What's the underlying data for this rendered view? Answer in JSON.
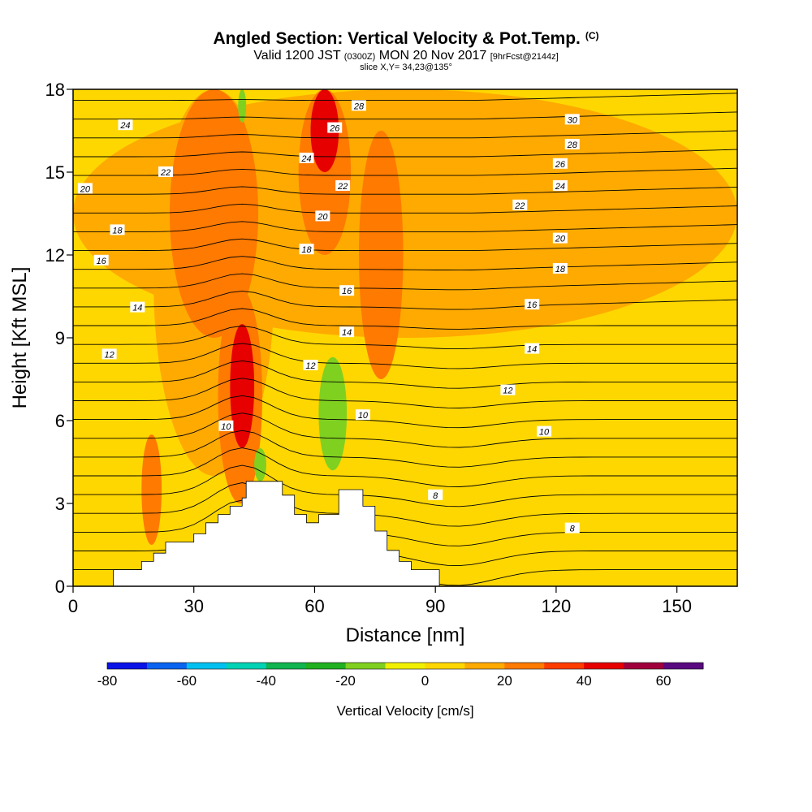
{
  "header": {
    "title": "Angled Section: Vertical Velocity & Pot.Temp.",
    "title_unit": "(C)",
    "subtitle_a": "Valid 1200 JST",
    "subtitle_b": "(0300Z)",
    "subtitle_c": "MON 20 Nov 2017",
    "subtitle_d": "[9hrFcst@2144z]",
    "slice": "slice X,Y= 34,23@135°"
  },
  "chart_data": {
    "type": "heatmap",
    "title": "Angled Section: Vertical Velocity & Pot.Temp.",
    "xlabel": "Distance [nm]",
    "ylabel": "Height [Kft MSL]",
    "xlim": [
      0,
      165
    ],
    "ylim": [
      0,
      18
    ],
    "x_ticks": [
      0,
      30,
      60,
      90,
      120,
      150
    ],
    "y_ticks": [
      0,
      3,
      6,
      9,
      12,
      15,
      18
    ],
    "colorbar": {
      "label": "Vertical Velocity [cm/s]",
      "tick_values": [
        -80,
        -60,
        -40,
        -20,
        0,
        20,
        40,
        60
      ],
      "bounds": [
        -80,
        70
      ],
      "colors": [
        "#0a14e6",
        "#0a64f0",
        "#00c0f0",
        "#00d2b4",
        "#10b450",
        "#20b020",
        "#80d020",
        "#f0f000",
        "#ffd700",
        "#ffaa00",
        "#ff7a00",
        "#ff3c00",
        "#e60000",
        "#a0003c",
        "#5a0a80"
      ]
    },
    "terrain": [
      [
        0,
        0
      ],
      [
        10,
        0
      ],
      [
        10,
        0.6
      ],
      [
        17,
        0.6
      ],
      [
        17,
        0.9
      ],
      [
        20,
        0.9
      ],
      [
        20,
        1.2
      ],
      [
        23,
        1.2
      ],
      [
        23,
        1.6
      ],
      [
        30,
        1.6
      ],
      [
        30,
        1.9
      ],
      [
        33,
        1.9
      ],
      [
        33,
        2.3
      ],
      [
        36,
        2.3
      ],
      [
        36,
        2.6
      ],
      [
        39,
        2.6
      ],
      [
        39,
        2.9
      ],
      [
        42,
        2.9
      ],
      [
        42,
        3.2
      ],
      [
        43,
        3.2
      ],
      [
        43,
        3.8
      ],
      [
        52,
        3.8
      ],
      [
        52,
        3.3
      ],
      [
        55,
        3.3
      ],
      [
        55,
        2.6
      ],
      [
        58,
        2.6
      ],
      [
        58,
        2.3
      ],
      [
        61,
        2.3
      ],
      [
        61,
        2.6
      ],
      [
        66,
        2.6
      ],
      [
        66,
        3.5
      ],
      [
        72,
        3.5
      ],
      [
        72,
        2.9
      ],
      [
        75,
        2.9
      ],
      [
        75,
        2.0
      ],
      [
        78,
        2.0
      ],
      [
        78,
        1.3
      ],
      [
        81,
        1.3
      ],
      [
        81,
        0.9
      ],
      [
        84,
        0.9
      ],
      [
        84,
        0.6
      ],
      [
        91,
        0.6
      ],
      [
        91,
        0
      ]
    ],
    "vertical_velocity_regions": [
      {
        "value": 10,
        "x": [
          0,
          165
        ],
        "y": [
          9.0,
          18
        ]
      },
      {
        "value": 10,
        "x": [
          20,
          50
        ],
        "y": [
          4.0,
          18
        ]
      },
      {
        "value": 20,
        "x": [
          24,
          46
        ],
        "y": [
          9.0,
          18
        ]
      },
      {
        "value": 20,
        "x": [
          36,
          47
        ],
        "y": [
          3.0,
          10.8
        ]
      },
      {
        "value": 40,
        "x": [
          39,
          45
        ],
        "y": [
          5.0,
          9.5
        ]
      },
      {
        "value": 20,
        "x": [
          56,
          69
        ],
        "y": [
          12.0,
          18
        ]
      },
      {
        "value": 40,
        "x": [
          59,
          66
        ],
        "y": [
          15.0,
          18
        ]
      },
      {
        "value": 20,
        "x": [
          71,
          82
        ],
        "y": [
          7.5,
          16.5
        ]
      },
      {
        "value": 20,
        "x": [
          17,
          22
        ],
        "y": [
          1.5,
          5.5
        ]
      },
      {
        "value": -20,
        "x": [
          61,
          68
        ],
        "y": [
          4.2,
          8.3
        ]
      },
      {
        "value": -20,
        "x": [
          45,
          48
        ],
        "y": [
          3.8,
          5.0
        ]
      },
      {
        "value": -20,
        "x": [
          41,
          43
        ],
        "y": [
          16.8,
          18
        ]
      }
    ],
    "theta_contour_labels": [
      {
        "text": "24",
        "x": 13,
        "y": 16.7
      },
      {
        "text": "22",
        "x": 23,
        "y": 15.0
      },
      {
        "text": "20",
        "x": 3,
        "y": 14.4
      },
      {
        "text": "18",
        "x": 11,
        "y": 12.9
      },
      {
        "text": "16",
        "x": 7,
        "y": 11.8
      },
      {
        "text": "14",
        "x": 16,
        "y": 10.1
      },
      {
        "text": "12",
        "x": 9,
        "y": 8.4
      },
      {
        "text": "10",
        "x": 38,
        "y": 5.8
      },
      {
        "text": "28",
        "x": 71,
        "y": 17.4
      },
      {
        "text": "26",
        "x": 65,
        "y": 16.6
      },
      {
        "text": "24",
        "x": 58,
        "y": 15.5
      },
      {
        "text": "22",
        "x": 67,
        "y": 14.5
      },
      {
        "text": "20",
        "x": 62,
        "y": 13.4
      },
      {
        "text": "18",
        "x": 58,
        "y": 12.2
      },
      {
        "text": "16",
        "x": 68,
        "y": 10.7
      },
      {
        "text": "14",
        "x": 68,
        "y": 9.2
      },
      {
        "text": "12",
        "x": 59,
        "y": 8.0
      },
      {
        "text": "10",
        "x": 72,
        "y": 6.2
      },
      {
        "text": "8",
        "x": 90,
        "y": 3.3
      },
      {
        "text": "30",
        "x": 124,
        "y": 16.9
      },
      {
        "text": "28",
        "x": 124,
        "y": 16.0
      },
      {
        "text": "26",
        "x": 121,
        "y": 15.3
      },
      {
        "text": "24",
        "x": 121,
        "y": 14.5
      },
      {
        "text": "22",
        "x": 111,
        "y": 13.8
      },
      {
        "text": "20",
        "x": 121,
        "y": 12.6
      },
      {
        "text": "18",
        "x": 121,
        "y": 11.5
      },
      {
        "text": "16",
        "x": 114,
        "y": 10.2
      },
      {
        "text": "14",
        "x": 114,
        "y": 8.6
      },
      {
        "text": "12",
        "x": 108,
        "y": 7.1
      },
      {
        "text": "10",
        "x": 117,
        "y": 5.6
      },
      {
        "text": "8",
        "x": 124,
        "y": 2.1
      }
    ]
  }
}
